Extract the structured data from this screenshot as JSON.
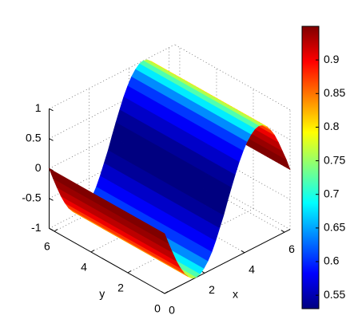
{
  "chart_data": {
    "type": "surface",
    "xlabel": "x",
    "ylabel": "y",
    "x": [
      0,
      0.2,
      0.39,
      0.59,
      0.79,
      0.98,
      1.18,
      1.37,
      1.57,
      1.77,
      1.96,
      2.16,
      2.36,
      2.55,
      2.75,
      2.95,
      3.14,
      3.34,
      3.53,
      3.73,
      3.93,
      4.12,
      4.32,
      4.52,
      4.71,
      4.91,
      5.11,
      5.3,
      5.5,
      5.69,
      5.89,
      6.09,
      6.28
    ],
    "z": [
      0,
      -0.2,
      -0.38,
      -0.56,
      -0.71,
      -0.83,
      -0.92,
      -0.98,
      -1,
      -0.98,
      -0.92,
      -0.83,
      -0.71,
      -0.56,
      -0.38,
      -0.2,
      0,
      0.2,
      0.38,
      0.56,
      0.71,
      0.83,
      0.92,
      0.98,
      1,
      0.98,
      0.92,
      0.83,
      0.71,
      0.56,
      0.38,
      0.2,
      0
    ],
    "color_values": [
      0.95,
      0.95,
      0.93,
      0.92,
      0.89,
      0.86,
      0.82,
      0.78,
      0.74,
      0.7,
      0.66,
      0.62,
      0.59,
      0.57,
      0.55,
      0.53,
      0.53,
      0.53,
      0.55,
      0.57,
      0.59,
      0.62,
      0.66,
      0.7,
      0.74,
      0.78,
      0.82,
      0.86,
      0.89,
      0.92,
      0.93,
      0.95,
      0.95
    ],
    "xlim": [
      0,
      6.28
    ],
    "ylim": [
      0,
      6.28
    ],
    "zlim": [
      -1,
      1
    ],
    "xticks": [
      0,
      2,
      4,
      6
    ],
    "yticks": [
      0,
      2,
      4,
      6
    ],
    "zticks": [
      -1,
      -0.5,
      0,
      0.5,
      1
    ],
    "clim": [
      0.53,
      0.95
    ],
    "cticks": [
      0.55,
      0.6,
      0.65,
      0.7,
      0.75,
      0.8,
      0.85,
      0.9
    ],
    "colormap": "jet",
    "grid": true
  }
}
